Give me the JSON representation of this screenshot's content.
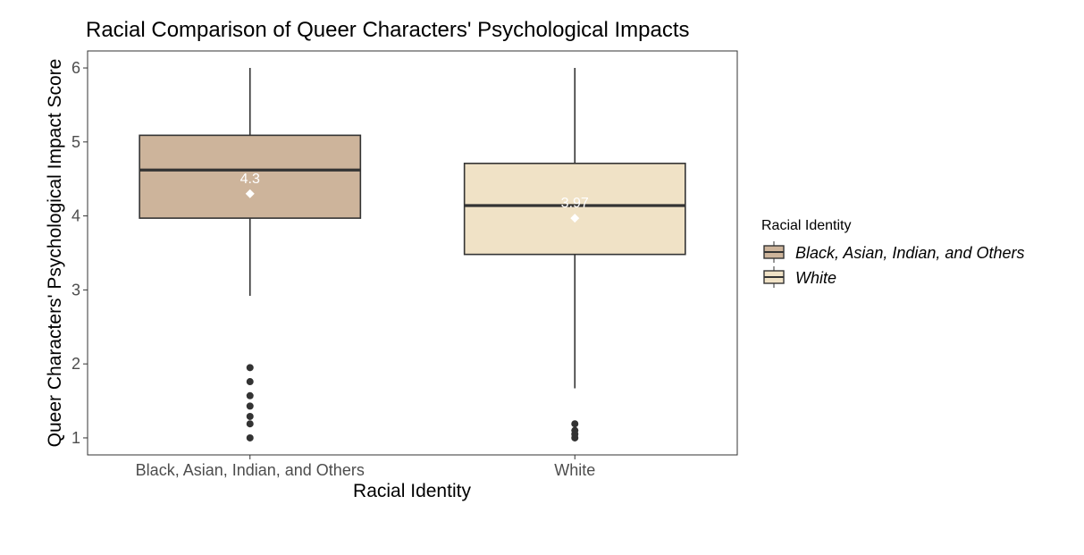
{
  "chart_data": {
    "type": "box",
    "title": "Racial Comparison of Queer Characters' Psychological Impacts",
    "xlabel": "Racial Identity",
    "ylabel": "Queer Characters' Psychological Impact Score",
    "ylim": [
      0.77,
      6.23
    ],
    "yticks": [
      1,
      2,
      3,
      4,
      5,
      6
    ],
    "legend": {
      "title": "Racial Identity",
      "placement": "right"
    },
    "series": [
      {
        "name": "Black, Asian, Indian, and Others",
        "color": "#cdb49b",
        "whisker_low": 2.92,
        "q1": 3.97,
        "median": 4.62,
        "q3": 5.09,
        "whisker_high": 6.0,
        "mean": 4.3,
        "mean_label": "4.3",
        "outliers": [
          1.0,
          1.19,
          1.29,
          1.43,
          1.57,
          1.76,
          1.95
        ]
      },
      {
        "name": "White",
        "color": "#f0e2c6",
        "whisker_low": 1.67,
        "q1": 3.48,
        "median": 4.14,
        "q3": 4.71,
        "whisker_high": 6.0,
        "mean": 3.97,
        "mean_label": "3.97",
        "outliers": [
          1.0,
          1.05,
          1.1,
          1.19
        ]
      }
    ]
  }
}
